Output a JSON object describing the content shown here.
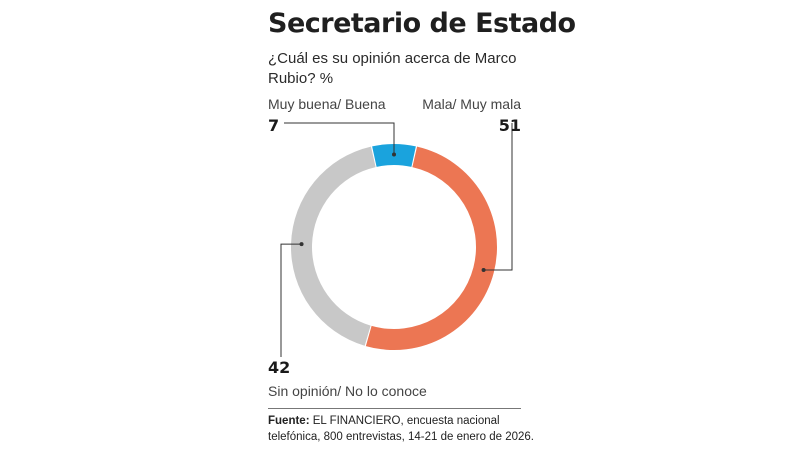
{
  "chart_data": {
    "type": "pie",
    "title": "Secretario de Estado",
    "subtitle": "¿Cuál es su opinión acerca de Marco Rubio? %",
    "categories": [
      "Muy buena/ Buena",
      "Mala/ Muy mala",
      "Sin opinión/ No lo conoce"
    ],
    "values": [
      7,
      51,
      42
    ],
    "colors": [
      "#1aa3dd",
      "#ec7653",
      "#c8c8c8"
    ]
  },
  "source": {
    "label": "Fuente:",
    "text": "EL FINANCIERO, encuesta nacional telefónica, 800 entrevistas, 14-21 de enero de 2026."
  }
}
